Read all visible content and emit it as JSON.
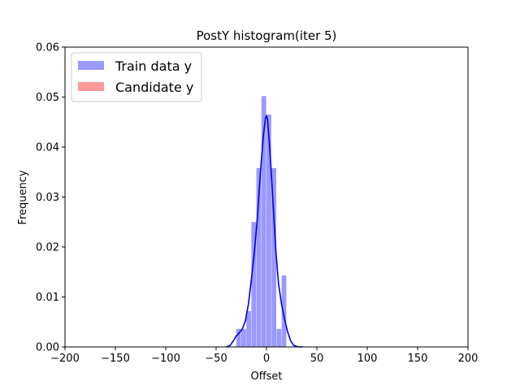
{
  "chart_data": {
    "type": "bar",
    "title": "PostY histogram(iter 5)",
    "xlabel": "Offset",
    "ylabel": "Frequency",
    "xlim": [
      -200,
      200
    ],
    "ylim": [
      0,
      0.06
    ],
    "x_ticks": [
      -200,
      -150,
      -100,
      -50,
      0,
      50,
      100,
      150,
      200
    ],
    "x_tick_labels": [
      "−200",
      "−150",
      "−100",
      "−50",
      "0",
      "50",
      "100",
      "150",
      "200"
    ],
    "y_ticks": [
      0,
      0.01,
      0.02,
      0.03,
      0.04,
      0.05,
      0.06
    ],
    "y_tick_labels": [
      "0.00",
      "0.01",
      "0.02",
      "0.03",
      "0.04",
      "0.05",
      "0.06"
    ],
    "legend": {
      "placement": "upper-left",
      "entries": [
        "Train data y",
        "Candidate y"
      ]
    },
    "series": [
      {
        "name": "Train data y",
        "color": "#9999ff",
        "bins": [
          {
            "x0": -30,
            "x1": -25,
            "y": 0.0036
          },
          {
            "x0": -25,
            "x1": -20,
            "y": 0.0036
          },
          {
            "x0": -20,
            "x1": -15,
            "y": 0.0072
          },
          {
            "x0": -15,
            "x1": -10,
            "y": 0.025
          },
          {
            "x0": -10,
            "x1": -5,
            "y": 0.0358
          },
          {
            "x0": -5,
            "x1": 0,
            "y": 0.0502
          },
          {
            "x0": 0,
            "x1": 5,
            "y": 0.0465
          },
          {
            "x0": 5,
            "x1": 10,
            "y": 0.0358
          },
          {
            "x0": 10,
            "x1": 15,
            "y": 0.0036
          },
          {
            "x0": 15,
            "x1": 20,
            "y": 0.0143
          }
        ]
      },
      {
        "name": "Candidate y",
        "color": "#ff9999",
        "bins": []
      }
    ],
    "kde": {
      "color": "#0000dd",
      "x": [
        -40,
        -36,
        -33,
        -30,
        -27,
        -24,
        -21,
        -18,
        -15,
        -12,
        -9,
        -6,
        -3,
        -1,
        0,
        1,
        3,
        5,
        7,
        9,
        12,
        15,
        18,
        21,
        24,
        27,
        30,
        33,
        36
      ],
      "y": [
        0,
        0.0003,
        0.0012,
        0.0022,
        0.0028,
        0.0036,
        0.0052,
        0.0085,
        0.0135,
        0.019,
        0.026,
        0.035,
        0.0425,
        0.0458,
        0.0462,
        0.0455,
        0.0405,
        0.034,
        0.027,
        0.02,
        0.0125,
        0.0085,
        0.0055,
        0.003,
        0.0012,
        0.0003,
        0.0001,
        0,
        0
      ]
    }
  }
}
